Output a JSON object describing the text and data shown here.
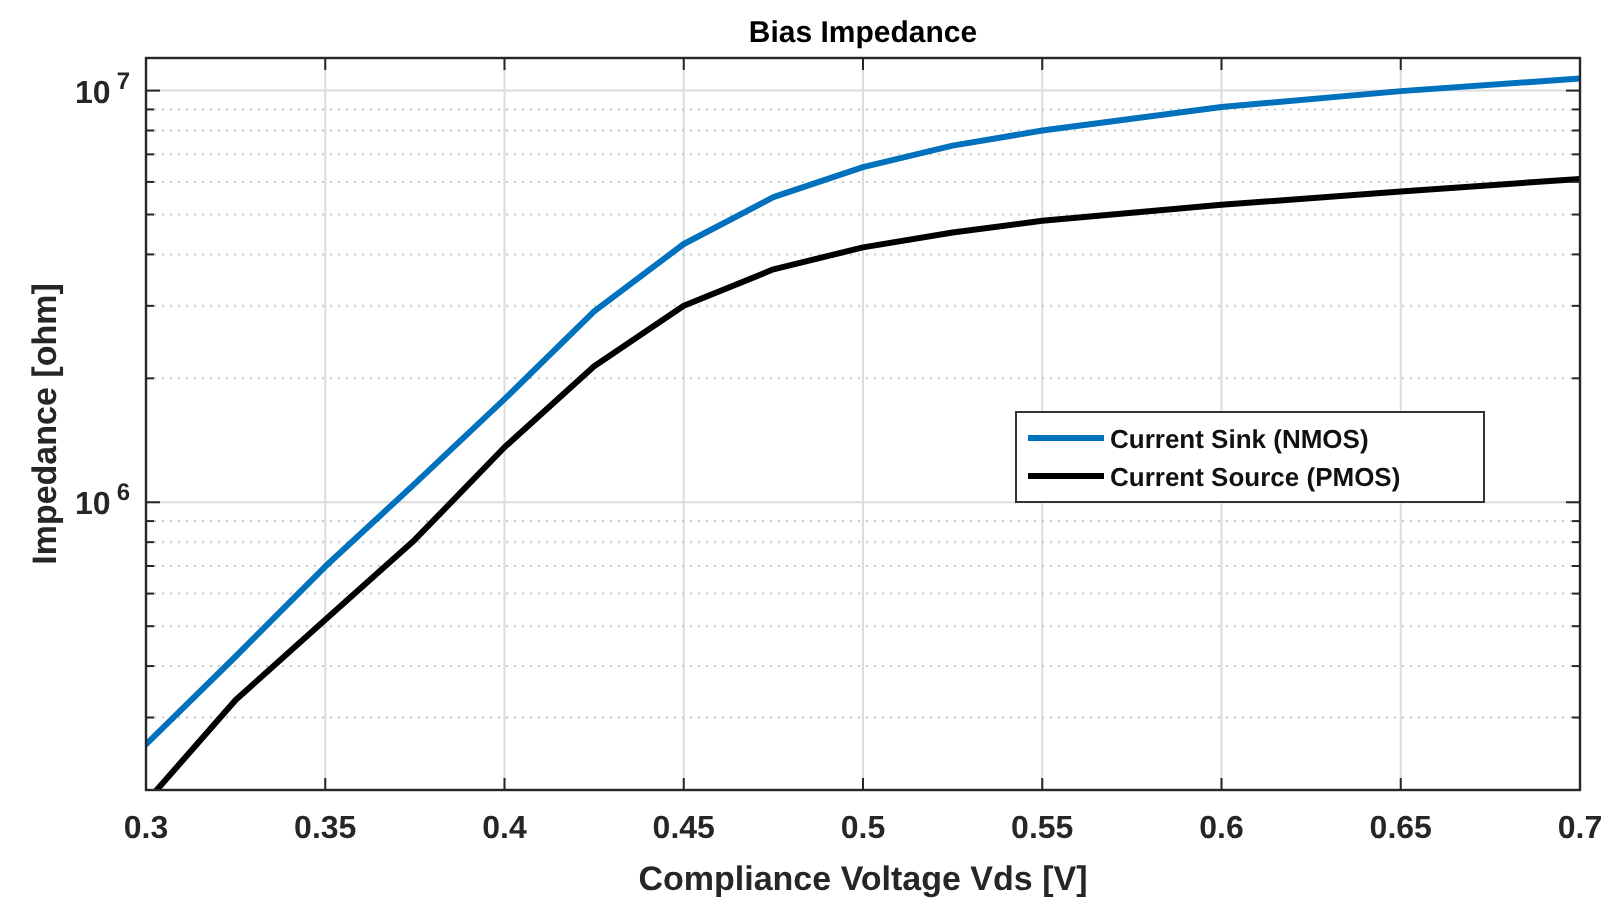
{
  "chart_data": {
    "type": "line",
    "title": "Bias Impedance",
    "xlabel": "Compliance Voltage Vds [V]",
    "ylabel": "Impedance [ohm]",
    "xlim": [
      0.3,
      0.7
    ],
    "xticks": [
      0.3,
      0.35,
      0.4,
      0.45,
      0.5,
      0.55,
      0.6,
      0.65,
      0.7
    ],
    "ylim": [
      200000,
      12000000
    ],
    "log": true,
    "yticks": [
      {
        "value": 200000,
        "label": null
      },
      {
        "value": 300000,
        "label": null
      },
      {
        "value": 400000,
        "label": null
      },
      {
        "value": 500000,
        "label": null
      },
      {
        "value": 600000,
        "label": null
      },
      {
        "value": 700000,
        "label": null
      },
      {
        "value": 800000,
        "label": null
      },
      {
        "value": 900000,
        "label": null
      },
      {
        "value": 1000000,
        "label": "10$^{6}$"
      },
      {
        "value": 2000000,
        "label": null
      },
      {
        "value": 3000000,
        "label": null
      },
      {
        "value": 4000000,
        "label": null
      },
      {
        "value": 5000000,
        "label": null
      },
      {
        "value": 6000000,
        "label": null
      },
      {
        "value": 7000000,
        "label": null
      },
      {
        "value": 8000000,
        "label": null
      },
      {
        "value": 9000000,
        "label": null
      },
      {
        "value": 10000000,
        "label": "10$^{7}$"
      }
    ],
    "grid": true,
    "legend": "right",
    "marker": "none",
    "line_style": "solid",
    "series": [
      {
        "name": "Current Sink (NMOS)",
        "color": "#0072bd",
        "x": [
          0.3,
          0.325,
          0.35,
          0.375,
          0.4,
          0.425,
          0.45,
          0.475,
          0.5,
          0.525,
          0.55,
          0.6,
          0.65,
          0.7
        ],
        "values": [
          258000,
          422000,
          698000,
          1110000,
          1780000,
          2910000,
          4240000,
          5510000,
          6520000,
          7350000,
          8000000,
          9120000,
          9970000,
          10700000
        ]
      },
      {
        "name": "Current Source (PMOS)",
        "color": "#000000",
        "x": [
          0.303,
          0.325,
          0.35,
          0.375,
          0.4,
          0.425,
          0.45,
          0.475,
          0.5,
          0.525,
          0.55,
          0.6,
          0.65,
          0.7
        ],
        "values": [
          200000,
          331000,
          518000,
          811000,
          1360000,
          2140000,
          3000000,
          3680000,
          4160000,
          4520000,
          4830000,
          5280000,
          5690000,
          6100000
        ]
      }
    ]
  }
}
